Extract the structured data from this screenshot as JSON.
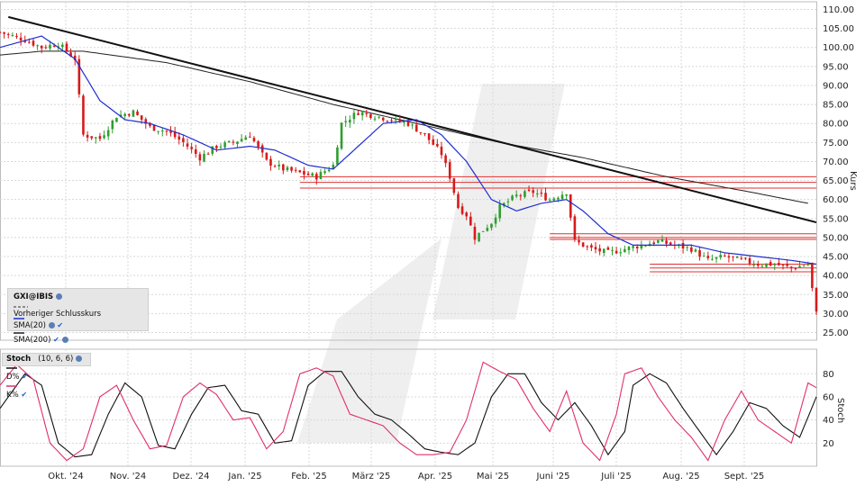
{
  "chart_data": [
    {
      "type": "candlestick",
      "panel": "price",
      "symbol_label": "GXI@IBIS",
      "ylabel": "Kurs",
      "ylim": [
        23,
        112
      ],
      "yticks": [
        25,
        30,
        35,
        40,
        45,
        50,
        55,
        60,
        65,
        70,
        75,
        80,
        85,
        90,
        95,
        100,
        105,
        110
      ],
      "ytick_labels": [
        "25.00",
        "30.00",
        "35.00",
        "40.00",
        "45.00",
        "50.00",
        "55.00",
        "60.00",
        "65.00",
        "70.00",
        "75.00",
        "80.00",
        "85.00",
        "90.00",
        "95.00",
        "100.00",
        "105.00",
        "110.00"
      ],
      "x_labels": [
        "Okt. '24",
        "Nov. '24",
        "Dez. '24",
        "Jan. '25",
        "Feb. '25",
        "März '25",
        "Apr. '25",
        "Mai '25",
        "Juni '25",
        "Juli '25",
        "Aug. '25",
        "Sept. '25"
      ],
      "close_anchors": [
        [
          0,
          104
        ],
        [
          3,
          102
        ],
        [
          5,
          100
        ],
        [
          7,
          101
        ],
        [
          9,
          97
        ],
        [
          10,
          77
        ],
        [
          12,
          76
        ],
        [
          14,
          82
        ],
        [
          16,
          83
        ],
        [
          18,
          79
        ],
        [
          20,
          78
        ],
        [
          22,
          75
        ],
        [
          24,
          71
        ],
        [
          26,
          74
        ],
        [
          28,
          75
        ],
        [
          30,
          77
        ],
        [
          32,
          70
        ],
        [
          34,
          68
        ],
        [
          36,
          67
        ],
        [
          38,
          66
        ],
        [
          40,
          69
        ],
        [
          41,
          80
        ],
        [
          43,
          83
        ],
        [
          45,
          82
        ],
        [
          47,
          81
        ],
        [
          49,
          80
        ],
        [
          51,
          77
        ],
        [
          53,
          72
        ],
        [
          54,
          66
        ],
        [
          55,
          58
        ],
        [
          56,
          56
        ],
        [
          57,
          50
        ],
        [
          59,
          54
        ],
        [
          60,
          58
        ],
        [
          62,
          61
        ],
        [
          64,
          62
        ],
        [
          66,
          60
        ],
        [
          68,
          62
        ],
        [
          69,
          49
        ],
        [
          71,
          47
        ],
        [
          73,
          46
        ],
        [
          75,
          47
        ],
        [
          77,
          48
        ],
        [
          79,
          49
        ],
        [
          81,
          48
        ],
        [
          83,
          47
        ],
        [
          85,
          44
        ],
        [
          87,
          45
        ],
        [
          89,
          44
        ],
        [
          91,
          43
        ],
        [
          93,
          43
        ],
        [
          95,
          42
        ],
        [
          97,
          43
        ],
        [
          98,
          30
        ]
      ],
      "sma20_anchors": [
        [
          0,
          100
        ],
        [
          5,
          103
        ],
        [
          9,
          97
        ],
        [
          12,
          86
        ],
        [
          15,
          81
        ],
        [
          18,
          80
        ],
        [
          22,
          77
        ],
        [
          26,
          73
        ],
        [
          30,
          74
        ],
        [
          33,
          73
        ],
        [
          37,
          69
        ],
        [
          40,
          68
        ],
        [
          43,
          74
        ],
        [
          46,
          80
        ],
        [
          50,
          81
        ],
        [
          53,
          77
        ],
        [
          56,
          70
        ],
        [
          59,
          60
        ],
        [
          62,
          57
        ],
        [
          65,
          59
        ],
        [
          68,
          60
        ],
        [
          70,
          57
        ],
        [
          73,
          51
        ],
        [
          76,
          48
        ],
        [
          80,
          48
        ],
        [
          83,
          48
        ],
        [
          87,
          46
        ],
        [
          91,
          45
        ],
        [
          95,
          44
        ],
        [
          98,
          43
        ]
      ],
      "sma200_anchors": [
        [
          0,
          98
        ],
        [
          5,
          99
        ],
        [
          10,
          99
        ],
        [
          20,
          96
        ],
        [
          30,
          91
        ],
        [
          40,
          85
        ],
        [
          50,
          80
        ],
        [
          60,
          75
        ],
        [
          70,
          71
        ],
        [
          80,
          66
        ],
        [
          90,
          62
        ],
        [
          97,
          59
        ]
      ],
      "trendline": {
        "from": [
          1,
          108
        ],
        "to": [
          98,
          54
        ]
      },
      "horizontal_levels": [
        66,
        64.5,
        63,
        51,
        50,
        49.5,
        43,
        42,
        41
      ],
      "legend": [
        "GXI@IBIS",
        "Vorheriger Schlusskurs",
        "SMA(20)",
        "SMA(200)"
      ],
      "colors": {
        "candle_up": "#2e9e2e",
        "candle_down": "#d61a1a",
        "sma20": "#1f2fd0",
        "sma200": "#202020",
        "trendline": "#111111",
        "levels": "#e03030",
        "grid": "#d8d8d8"
      }
    },
    {
      "type": "line",
      "panel": "stochastic",
      "title": "Stoch",
      "params": "(10, 6, 6)",
      "ylabel": "Stoch",
      "ylim": [
        0,
        95
      ],
      "yticks": [
        20,
        40,
        60,
        80
      ],
      "ytick_labels": [
        "20",
        "40",
        "60",
        "80"
      ],
      "series": [
        {
          "name": "D%",
          "color": "#111111",
          "anchors": [
            [
              0,
              50
            ],
            [
              3,
              80
            ],
            [
              5,
              70
            ],
            [
              7,
              20
            ],
            [
              9,
              8
            ],
            [
              11,
              10
            ],
            [
              13,
              45
            ],
            [
              15,
              72
            ],
            [
              17,
              60
            ],
            [
              19,
              18
            ],
            [
              21,
              15
            ],
            [
              23,
              45
            ],
            [
              25,
              68
            ],
            [
              27,
              70
            ],
            [
              29,
              48
            ],
            [
              31,
              45
            ],
            [
              33,
              20
            ],
            [
              35,
              22
            ],
            [
              37,
              70
            ],
            [
              39,
              82
            ],
            [
              41,
              82
            ],
            [
              43,
              60
            ],
            [
              45,
              45
            ],
            [
              47,
              40
            ],
            [
              49,
              28
            ],
            [
              51,
              15
            ],
            [
              53,
              12
            ],
            [
              55,
              10
            ],
            [
              57,
              20
            ],
            [
              59,
              60
            ],
            [
              61,
              80
            ],
            [
              63,
              80
            ],
            [
              65,
              55
            ],
            [
              67,
              40
            ],
            [
              69,
              55
            ],
            [
              71,
              35
            ],
            [
              73,
              10
            ],
            [
              75,
              30
            ],
            [
              76,
              70
            ],
            [
              78,
              80
            ],
            [
              80,
              72
            ],
            [
              82,
              50
            ],
            [
              84,
              30
            ],
            [
              86,
              10
            ],
            [
              88,
              30
            ],
            [
              90,
              55
            ],
            [
              92,
              50
            ],
            [
              94,
              35
            ],
            [
              96,
              25
            ],
            [
              98,
              60
            ]
          ]
        },
        {
          "name": "K%",
          "color": "#e0306a",
          "anchors": [
            [
              0,
              70
            ],
            [
              2,
              88
            ],
            [
              4,
              75
            ],
            [
              6,
              20
            ],
            [
              8,
              5
            ],
            [
              10,
              15
            ],
            [
              12,
              60
            ],
            [
              14,
              70
            ],
            [
              16,
              40
            ],
            [
              18,
              15
            ],
            [
              20,
              18
            ],
            [
              22,
              60
            ],
            [
              24,
              72
            ],
            [
              26,
              62
            ],
            [
              28,
              40
            ],
            [
              30,
              42
            ],
            [
              32,
              15
            ],
            [
              34,
              30
            ],
            [
              36,
              80
            ],
            [
              38,
              85
            ],
            [
              40,
              78
            ],
            [
              42,
              45
            ],
            [
              44,
              40
            ],
            [
              46,
              35
            ],
            [
              48,
              20
            ],
            [
              50,
              10
            ],
            [
              52,
              10
            ],
            [
              54,
              12
            ],
            [
              56,
              40
            ],
            [
              58,
              90
            ],
            [
              60,
              82
            ],
            [
              62,
              75
            ],
            [
              64,
              50
            ],
            [
              66,
              30
            ],
            [
              68,
              65
            ],
            [
              70,
              20
            ],
            [
              72,
              5
            ],
            [
              74,
              45
            ],
            [
              75,
              80
            ],
            [
              77,
              85
            ],
            [
              79,
              60
            ],
            [
              81,
              40
            ],
            [
              83,
              25
            ],
            [
              85,
              5
            ],
            [
              87,
              40
            ],
            [
              89,
              65
            ],
            [
              91,
              40
            ],
            [
              93,
              30
            ],
            [
              95,
              20
            ],
            [
              97,
              72
            ],
            [
              98,
              68
            ]
          ]
        }
      ]
    }
  ]
}
